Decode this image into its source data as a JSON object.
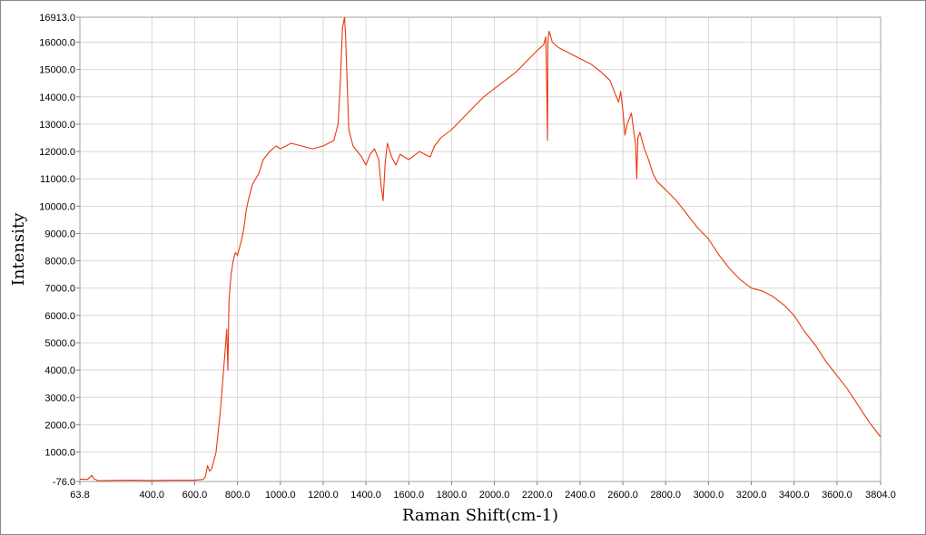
{
  "chart_data": {
    "type": "line",
    "title": "",
    "xlabel": "Raman Shift(cm-1)",
    "ylabel": "Intensity",
    "xlim": [
      63.8,
      3804.0
    ],
    "ylim": [
      -76.0,
      16913.0
    ],
    "grid": true,
    "legend": "none",
    "x_tick_labels": [
      "63.8",
      "400.0",
      "600.0",
      "800.0",
      "1000.0",
      "1200.0",
      "1400.0",
      "1600.0",
      "1800.0",
      "2000.0",
      "2200.0",
      "2400.0",
      "2600.0",
      "2800.0",
      "3000.0",
      "3200.0",
      "3400.0",
      "3600.0",
      "3804.0"
    ],
    "x_tick_values": [
      63.8,
      400,
      600,
      800,
      1000,
      1200,
      1400,
      1600,
      1800,
      2000,
      2200,
      2400,
      2600,
      2800,
      3000,
      3200,
      3400,
      3600,
      3804
    ],
    "y_tick_labels": [
      "-76.0",
      "1000.0",
      "2000.0",
      "3000.0",
      "4000.0",
      "5000.0",
      "6000.0",
      "7000.0",
      "8000.0",
      "9000.0",
      "10000.0",
      "11000.0",
      "12000.0",
      "13000.0",
      "14000.0",
      "15000.0",
      "16000.0",
      "16913.0"
    ],
    "y_tick_values": [
      -76,
      1000,
      2000,
      3000,
      4000,
      5000,
      6000,
      7000,
      8000,
      9000,
      10000,
      11000,
      12000,
      13000,
      14000,
      15000,
      16000,
      16913
    ],
    "series": [
      {
        "color": "#e8380d",
        "x": [
          63.8,
          100,
          120,
          130,
          150,
          200,
          300,
          400,
          500,
          600,
          640,
          650,
          660,
          670,
          680,
          700,
          720,
          740,
          750,
          755,
          760,
          770,
          780,
          790,
          800,
          810,
          820,
          830,
          840,
          850,
          870,
          900,
          920,
          950,
          980,
          1000,
          1050,
          1100,
          1150,
          1200,
          1250,
          1270,
          1280,
          1290,
          1300,
          1305,
          1310,
          1320,
          1340,
          1360,
          1380,
          1400,
          1420,
          1440,
          1460,
          1470,
          1480,
          1490,
          1500,
          1520,
          1540,
          1560,
          1580,
          1600,
          1650,
          1700,
          1720,
          1750,
          1800,
          1850,
          1900,
          1950,
          2000,
          2050,
          2100,
          2150,
          2200,
          2230,
          2240,
          2245,
          2248,
          2250,
          2255,
          2260,
          2270,
          2300,
          2350,
          2400,
          2450,
          2500,
          2540,
          2560,
          2580,
          2590,
          2600,
          2610,
          2620,
          2640,
          2660,
          2665,
          2670,
          2680,
          2700,
          2720,
          2740,
          2760,
          2800,
          2850,
          2900,
          2950,
          3000,
          3050,
          3100,
          3150,
          3200,
          3250,
          3300,
          3350,
          3400,
          3450,
          3500,
          3550,
          3600,
          3650,
          3700,
          3750,
          3780,
          3804
        ],
        "y": [
          10,
          0,
          150,
          20,
          -50,
          -40,
          -30,
          -40,
          -30,
          -30,
          0,
          100,
          500,
          300,
          400,
          1000,
          2500,
          4500,
          5500,
          4000,
          6500,
          7500,
          8000,
          8300,
          8200,
          8500,
          8800,
          9200,
          9800,
          10200,
          10800,
          11200,
          11700,
          12000,
          12200,
          12100,
          12300,
          12200,
          12100,
          12200,
          12400,
          13000,
          14500,
          16500,
          16913,
          16200,
          15000,
          12800,
          12200,
          12000,
          11800,
          11500,
          11900,
          12100,
          11700,
          10800,
          10200,
          11600,
          12300,
          11800,
          11500,
          11900,
          11800,
          11700,
          12000,
          11800,
          12200,
          12500,
          12800,
          13200,
          13600,
          14000,
          14300,
          14600,
          14900,
          15300,
          15700,
          15900,
          16200,
          14000,
          12400,
          16000,
          16400,
          16300,
          16000,
          15800,
          15600,
          15400,
          15200,
          14900,
          14600,
          14200,
          13800,
          14200,
          13500,
          12600,
          13000,
          13400,
          12200,
          11000,
          12500,
          12700,
          12100,
          11700,
          11200,
          10900,
          10600,
          10200,
          9700,
          9200,
          8800,
          8200,
          7700,
          7300,
          7000,
          6900,
          6700,
          6400,
          6000,
          5400,
          4900,
          4300,
          3800,
          3300,
          2700,
          2100,
          1800,
          1550
        ]
      }
    ]
  }
}
